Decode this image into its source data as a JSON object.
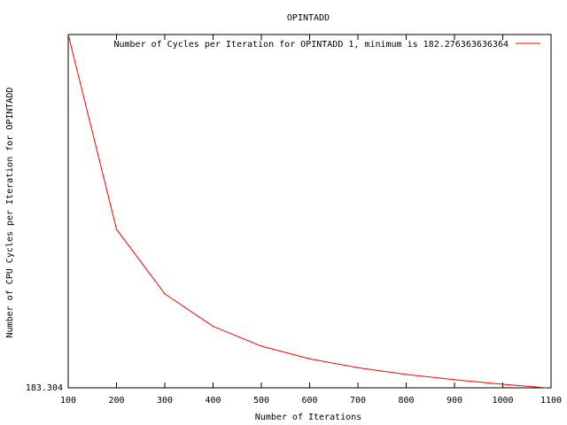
{
  "chart_data": {
    "type": "line",
    "title": "OPINTADD",
    "xlabel": "Number of Iterations",
    "ylabel": "Number of CPU Cycles per Iteration for OPINTADD",
    "xlim": [
      100,
      1100
    ],
    "x_ticks": [
      "100",
      "200",
      "300",
      "400",
      "500",
      "600",
      "700",
      "800",
      "900",
      "1000",
      "1100"
    ],
    "y_ticks": [
      "183.304"
    ],
    "grid": false,
    "legend_position": "top-right",
    "series": [
      {
        "name": "Number of Cycles per Iteration for OPINTADD 1, minimum is 182.276363636364",
        "color": "#ff0000",
        "x": [
          100,
          200,
          300,
          400,
          500,
          600,
          700,
          800,
          900,
          1000,
          1090
        ],
        "y": [
          1.0,
          0.449,
          0.266,
          0.174,
          0.118,
          0.082,
          0.057,
          0.038,
          0.023,
          0.01,
          0.0
        ]
      }
    ]
  }
}
